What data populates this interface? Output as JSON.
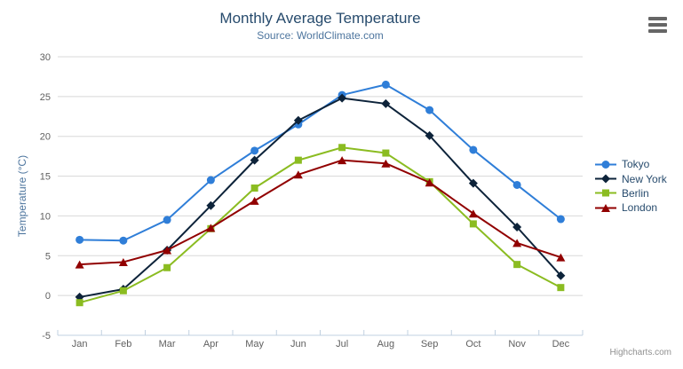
{
  "header": {
    "title": "Monthly Average Temperature",
    "subtitle": "Source: WorldClimate.com"
  },
  "chart_data": {
    "type": "line",
    "title": "Monthly Average Temperature",
    "subtitle": "Source: WorldClimate.com",
    "categories": [
      "Jan",
      "Feb",
      "Mar",
      "Apr",
      "May",
      "Jun",
      "Jul",
      "Aug",
      "Sep",
      "Oct",
      "Nov",
      "Dec"
    ],
    "series": [
      {
        "name": "Tokyo",
        "color": "#2f7ed8",
        "marker": "circle",
        "values": [
          7.0,
          6.9,
          9.5,
          14.5,
          18.2,
          21.5,
          25.2,
          26.5,
          23.3,
          18.3,
          13.9,
          9.6
        ]
      },
      {
        "name": "New York",
        "color": "#0d233a",
        "marker": "diamond",
        "values": [
          -0.2,
          0.8,
          5.7,
          11.3,
          17.0,
          22.0,
          24.8,
          24.1,
          20.1,
          14.1,
          8.6,
          2.5
        ]
      },
      {
        "name": "Berlin",
        "color": "#8bbc21",
        "marker": "square",
        "values": [
          -0.9,
          0.6,
          3.5,
          8.4,
          13.5,
          17.0,
          18.6,
          17.9,
          14.3,
          9.0,
          3.9,
          1.0
        ]
      },
      {
        "name": "London",
        "color": "#910000",
        "marker": "triangle-up",
        "values": [
          3.9,
          4.2,
          5.7,
          8.5,
          11.9,
          15.2,
          17.0,
          16.6,
          14.2,
          10.3,
          6.6,
          4.8
        ]
      }
    ],
    "xlabel": "",
    "ylabel": "Temperature (°C)",
    "ylim": [
      -5,
      30
    ],
    "ytick_interval": 5,
    "grid": "horizontal",
    "legend_position": "right"
  },
  "colors": {
    "title": "#274b6d",
    "subtitle": "#4d759e",
    "axis_line": "#c0d0e0",
    "gridline": "#d8d8d8",
    "tick_label": "#606060",
    "legend_text": "#274b6d",
    "menu_icon": "#666666",
    "credit_text": "#909090"
  },
  "menu": {
    "icon": "hamburger-menu-icon"
  },
  "credit": {
    "label": "Highcharts.com"
  }
}
